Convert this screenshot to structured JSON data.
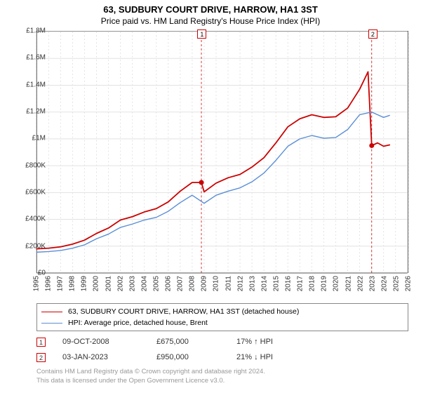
{
  "title": "63, SUDBURY COURT DRIVE, HARROW, HA1 3ST",
  "subtitle": "Price paid vs. HM Land Registry's House Price Index (HPI)",
  "chart": {
    "type": "line",
    "background_color": "#ffffff",
    "grid_color": "#e2e2e2",
    "border_color": "#555555",
    "x_years": [
      1995,
      1996,
      1997,
      1998,
      1999,
      2000,
      2001,
      2002,
      2003,
      2004,
      2005,
      2006,
      2007,
      2008,
      2009,
      2010,
      2011,
      2012,
      2013,
      2014,
      2015,
      2016,
      2017,
      2018,
      2019,
      2020,
      2021,
      2022,
      2023,
      2024,
      2025,
      2026
    ],
    "xmin": 1995,
    "xmax": 2026,
    "ymin": 0,
    "ymax": 1800000,
    "ytick_step": 200000,
    "ylabels": [
      "£0",
      "£200K",
      "£400K",
      "£600K",
      "£800K",
      "£1M",
      "£1.2M",
      "£1.4M",
      "£1.6M",
      "£1.8M"
    ],
    "label_fontsize": 10,
    "series": [
      {
        "name": "63, SUDBURY COURT DRIVE, HARROW, HA1 3ST (detached house)",
        "color": "#cc0000",
        "line_width": 1.8,
        "points": [
          [
            1995,
            180000
          ],
          [
            1996,
            185000
          ],
          [
            1997,
            195000
          ],
          [
            1998,
            215000
          ],
          [
            1999,
            245000
          ],
          [
            2000,
            295000
          ],
          [
            2001,
            335000
          ],
          [
            2002,
            395000
          ],
          [
            2003,
            420000
          ],
          [
            2004,
            455000
          ],
          [
            2005,
            480000
          ],
          [
            2006,
            530000
          ],
          [
            2007,
            610000
          ],
          [
            2008,
            675000
          ],
          [
            2008.77,
            675000
          ],
          [
            2009,
            605000
          ],
          [
            2010,
            670000
          ],
          [
            2011,
            710000
          ],
          [
            2012,
            735000
          ],
          [
            2013,
            790000
          ],
          [
            2014,
            860000
          ],
          [
            2015,
            970000
          ],
          [
            2016,
            1090000
          ],
          [
            2017,
            1150000
          ],
          [
            2018,
            1180000
          ],
          [
            2019,
            1160000
          ],
          [
            2020,
            1165000
          ],
          [
            2021,
            1230000
          ],
          [
            2022,
            1370000
          ],
          [
            2022.7,
            1500000
          ],
          [
            2023.01,
            950000
          ],
          [
            2023.5,
            970000
          ],
          [
            2024,
            945000
          ],
          [
            2024.5,
            955000
          ]
        ]
      },
      {
        "name": "HPI: Average price, detached house, Brent",
        "color": "#5b8fd6",
        "line_width": 1.4,
        "points": [
          [
            1995,
            155000
          ],
          [
            1996,
            160000
          ],
          [
            1997,
            168000
          ],
          [
            1998,
            185000
          ],
          [
            1999,
            210000
          ],
          [
            2000,
            255000
          ],
          [
            2001,
            290000
          ],
          [
            2002,
            340000
          ],
          [
            2003,
            365000
          ],
          [
            2004,
            395000
          ],
          [
            2005,
            415000
          ],
          [
            2006,
            460000
          ],
          [
            2007,
            525000
          ],
          [
            2008,
            580000
          ],
          [
            2009,
            520000
          ],
          [
            2010,
            580000
          ],
          [
            2011,
            610000
          ],
          [
            2012,
            635000
          ],
          [
            2013,
            680000
          ],
          [
            2014,
            745000
          ],
          [
            2015,
            840000
          ],
          [
            2016,
            945000
          ],
          [
            2017,
            1000000
          ],
          [
            2018,
            1025000
          ],
          [
            2019,
            1005000
          ],
          [
            2020,
            1010000
          ],
          [
            2021,
            1070000
          ],
          [
            2022,
            1180000
          ],
          [
            2023,
            1200000
          ],
          [
            2024,
            1160000
          ],
          [
            2024.5,
            1175000
          ]
        ]
      }
    ],
    "sale_markers": [
      {
        "n": "1",
        "x": 2008.77,
        "y": 675000
      },
      {
        "n": "2",
        "x": 2023.01,
        "y": 950000
      }
    ],
    "sale_dot_color": "#cc0000",
    "sale_dot_radius": 3.5,
    "sale_vline_color": "#cc0000",
    "sale_vline_dash": "3,3"
  },
  "legend": [
    {
      "color": "#cc0000",
      "width": 1.8,
      "label": "63, SUDBURY COURT DRIVE, HARROW, HA1 3ST (detached house)"
    },
    {
      "color": "#5b8fd6",
      "width": 1.4,
      "label": "HPI: Average price, detached house, Brent"
    }
  ],
  "sales": [
    {
      "n": "1",
      "date": "09-OCT-2008",
      "price": "£675,000",
      "diff": "17% ↑ HPI"
    },
    {
      "n": "2",
      "date": "03-JAN-2023",
      "price": "£950,000",
      "diff": "21% ↓ HPI"
    }
  ],
  "footer_line1": "Contains HM Land Registry data © Crown copyright and database right 2024.",
  "footer_line2": "This data is licensed under the Open Government Licence v3.0."
}
